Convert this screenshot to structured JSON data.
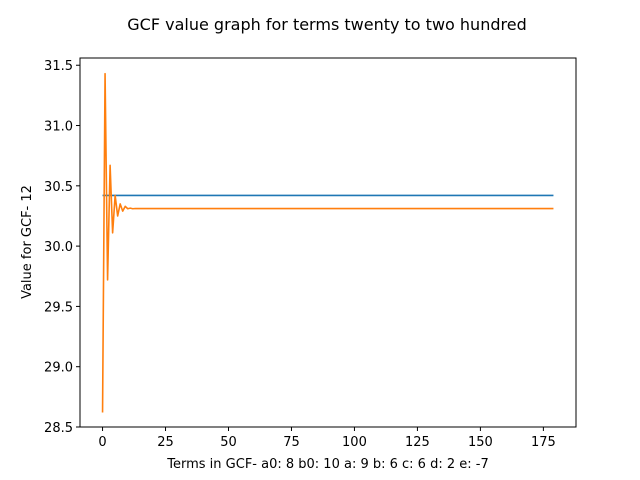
{
  "chart_data": {
    "type": "line",
    "title": "GCF value graph for terms twenty to two hundred",
    "xlabel": "Terms in GCF-  a0: 8 b0: 10 a: 9 b: 6 c: 6 d: 2 e: -7",
    "ylabel": "Value for GCF- 12",
    "xlim": [
      -8.95,
      187.95
    ],
    "ylim": [
      28.5,
      31.56
    ],
    "grid": false,
    "x_ticks": [
      0,
      25,
      50,
      75,
      100,
      125,
      150,
      175
    ],
    "y_ticks": [
      28.5,
      29.0,
      29.5,
      30.0,
      30.5,
      31.0,
      31.5
    ],
    "x_tick_labels": [
      "0",
      "25",
      "50",
      "75",
      "100",
      "125",
      "150",
      "175"
    ],
    "y_tick_labels": [
      "28.5",
      "29.0",
      "29.5",
      "30.0",
      "30.5",
      "31.0",
      "31.5"
    ],
    "series": [
      {
        "color": "#1f77b4",
        "x": [
          0,
          179
        ],
        "y": [
          30.42,
          30.42
        ]
      },
      {
        "color": "#ff7f0e",
        "x": [
          0,
          1,
          2,
          3,
          4,
          5,
          6,
          7,
          8,
          9,
          10,
          11,
          12,
          13,
          14,
          15,
          179
        ],
        "y": [
          28.62,
          31.43,
          29.72,
          30.67,
          30.11,
          30.42,
          30.25,
          30.35,
          30.29,
          30.33,
          30.31,
          30.315,
          30.31,
          30.312,
          30.311,
          30.311,
          30.311
        ]
      }
    ]
  }
}
